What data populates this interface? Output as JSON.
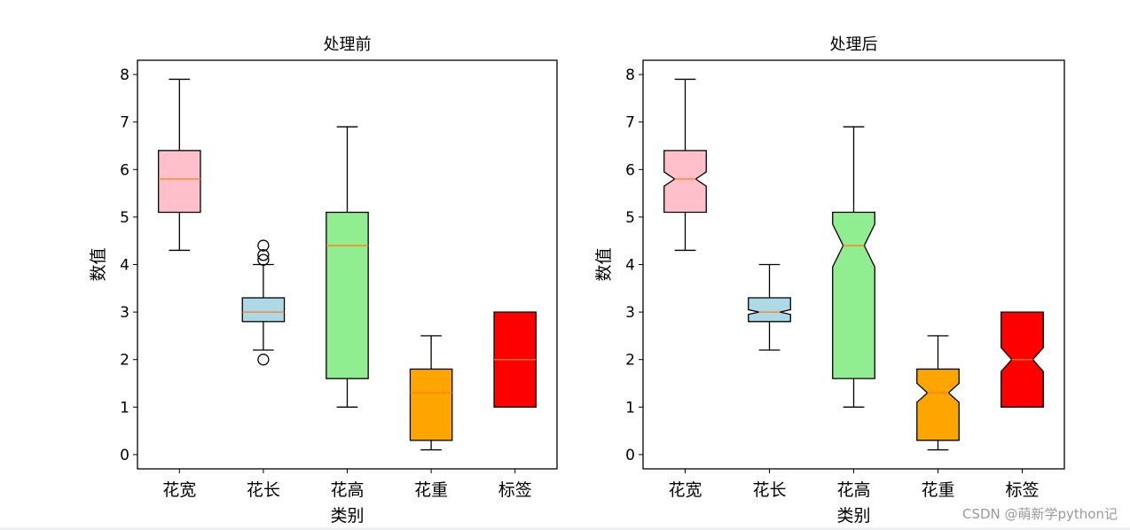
{
  "chart_data": [
    {
      "type": "box",
      "title": "处理前",
      "xlabel": "类别",
      "ylabel": "数值",
      "ylim": [
        -0.3,
        8.3
      ],
      "yticks": [
        0,
        1,
        2,
        3,
        4,
        5,
        6,
        7,
        8
      ],
      "notch": false,
      "categories": [
        "花宽",
        "花长",
        "花高",
        "花重",
        "标签"
      ],
      "boxes": [
        {
          "whisker_low": 4.3,
          "q1": 5.1,
          "median": 5.8,
          "q3": 6.4,
          "whisker_high": 7.9,
          "fliers": [],
          "color": "#ffc0cb"
        },
        {
          "whisker_low": 2.2,
          "q1": 2.8,
          "median": 3.0,
          "q3": 3.3,
          "whisker_high": 4.0,
          "fliers": [
            2.0,
            4.1,
            4.2,
            4.4
          ],
          "color": "#add8e6"
        },
        {
          "whisker_low": 1.0,
          "q1": 1.6,
          "median": 4.4,
          "q3": 5.1,
          "whisker_high": 6.9,
          "fliers": [],
          "color": "#90ee90"
        },
        {
          "whisker_low": 0.1,
          "q1": 0.3,
          "median": 1.3,
          "q3": 1.8,
          "whisker_high": 2.5,
          "fliers": [],
          "color": "#ffa500"
        },
        {
          "whisker_low": 1.0,
          "q1": 1.0,
          "median": 2.0,
          "q3": 3.0,
          "whisker_high": 3.0,
          "fliers": [],
          "color": "#ff0000"
        }
      ]
    },
    {
      "type": "box",
      "title": "处理后",
      "xlabel": "类别",
      "ylabel": "数值",
      "ylim": [
        -0.3,
        8.3
      ],
      "yticks": [
        0,
        1,
        2,
        3,
        4,
        5,
        6,
        7,
        8
      ],
      "notch": true,
      "categories": [
        "花宽",
        "花长",
        "花高",
        "花重",
        "标签"
      ],
      "boxes": [
        {
          "whisker_low": 4.3,
          "q1": 5.1,
          "median": 5.8,
          "q3": 6.4,
          "whisker_high": 7.9,
          "notch_low": 5.65,
          "notch_high": 5.95,
          "fliers": [],
          "color": "#ffc0cb"
        },
        {
          "whisker_low": 2.2,
          "q1": 2.8,
          "median": 3.0,
          "q3": 3.3,
          "whisker_high": 4.0,
          "notch_low": 2.95,
          "notch_high": 3.05,
          "fliers": [],
          "color": "#add8e6"
        },
        {
          "whisker_low": 1.0,
          "q1": 1.6,
          "median": 4.4,
          "q3": 5.1,
          "whisker_high": 6.9,
          "notch_low": 3.95,
          "notch_high": 4.85,
          "fliers": [],
          "color": "#90ee90"
        },
        {
          "whisker_low": 0.1,
          "q1": 0.3,
          "median": 1.3,
          "q3": 1.8,
          "whisker_high": 2.5,
          "notch_low": 1.1,
          "notch_high": 1.5,
          "fliers": [],
          "color": "#ffa500"
        },
        {
          "whisker_low": 1.0,
          "q1": 1.0,
          "median": 2.0,
          "q3": 3.0,
          "whisker_high": 3.0,
          "notch_low": 1.75,
          "notch_high": 2.25,
          "fliers": [],
          "color": "#ff0000"
        }
      ]
    }
  ],
  "median_color": "#ff7f0e",
  "watermark": "CSDN @萌新学python记"
}
